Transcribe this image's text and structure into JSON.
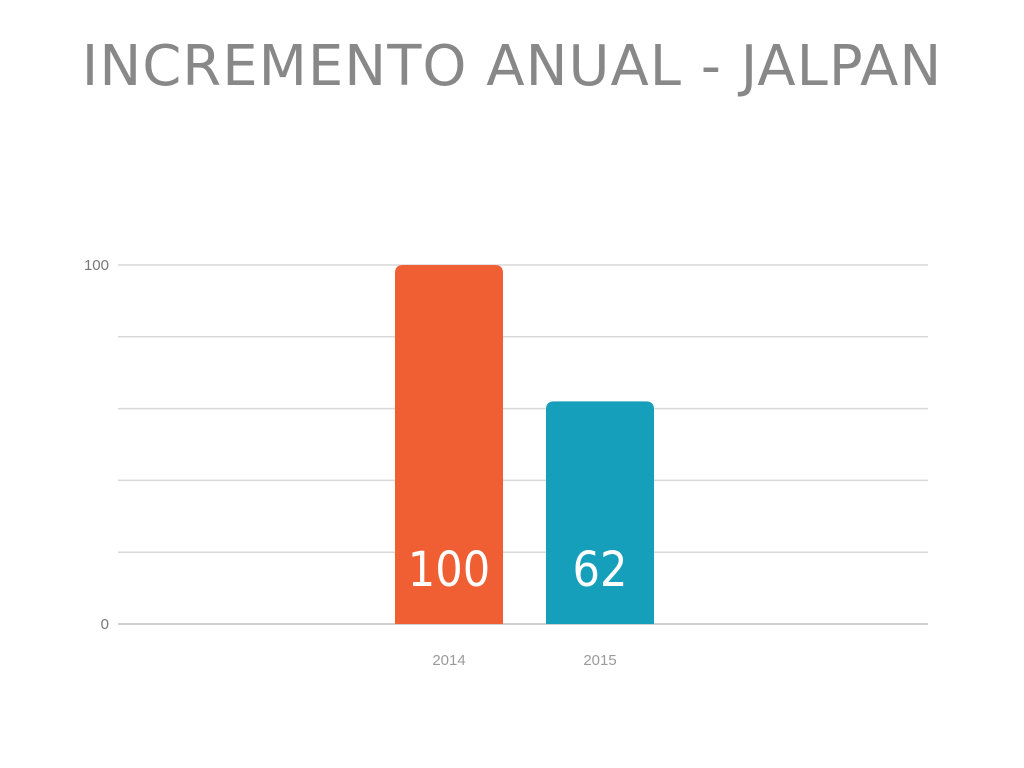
{
  "slide": {
    "title": "INCREMENTO ANUAL - JALPAN"
  },
  "chart_data": {
    "type": "bar",
    "title": "INCREMENTO ANUAL - JALPAN",
    "categories": [
      "2014",
      "2015"
    ],
    "values": [
      100,
      62
    ],
    "data_labels": [
      "100",
      "62"
    ],
    "colors": [
      "#F05F33",
      "#169FBA"
    ],
    "xlabel": "",
    "ylabel": "",
    "ylim": [
      0,
      100
    ],
    "y_tick_labels": [
      "0",
      "100"
    ],
    "grid": true,
    "gridline_count": 5,
    "legend": "none"
  }
}
